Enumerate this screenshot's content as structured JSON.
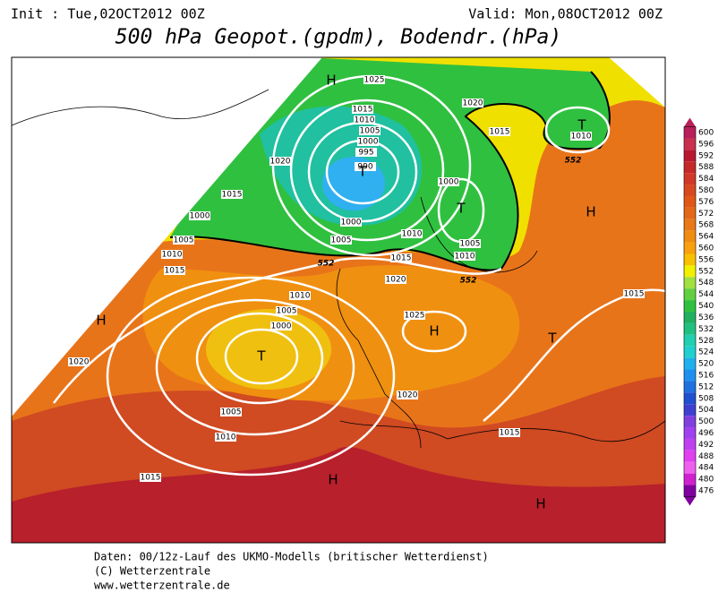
{
  "header": {
    "init": "Init : Tue,02OCT2012 00Z",
    "valid": "Valid: Mon,08OCT2012 00Z",
    "title": "500 hPa Geopot.(gpdm), Bodendr.(hPa)"
  },
  "map": {
    "pressure_centers": [
      "H",
      "T",
      "T",
      "T",
      "H",
      "H",
      "T",
      "H",
      "T",
      "H",
      "H"
    ],
    "isobar_labels": [
      "1025",
      "1020",
      "1015",
      "1010",
      "1015",
      "1010",
      "1005",
      "1000",
      "995",
      "990",
      "1020",
      "1015",
      "1000",
      "1005",
      "1010",
      "1015",
      "1000",
      "1000",
      "1005",
      "1010",
      "1005",
      "1010",
      "1015",
      "1020",
      "1025",
      "1010",
      "1005",
      "1000",
      "1015",
      "1020",
      "1020",
      "1005",
      "1010",
      "1015",
      "1015"
    ],
    "contour_labels": [
      "552",
      "552",
      "552"
    ]
  },
  "scale": {
    "labels": [
      "600",
      "596",
      "592",
      "588",
      "584",
      "580",
      "576",
      "572",
      "568",
      "564",
      "560",
      "556",
      "552",
      "548",
      "544",
      "540",
      "536",
      "532",
      "528",
      "524",
      "520",
      "516",
      "512",
      "508",
      "504",
      "500",
      "496",
      "492",
      "488",
      "484",
      "480",
      "476"
    ],
    "colors": [
      "#b8205a",
      "#c8304e",
      "#b81830",
      "#c42828",
      "#d03828",
      "#d84820",
      "#e05818",
      "#e46818",
      "#e87818",
      "#f08c10",
      "#f8a010",
      "#f8c000",
      "#f0f000",
      "#a0e040",
      "#60d040",
      "#30c040",
      "#20b060",
      "#20c080",
      "#20d0b0",
      "#20d0d0",
      "#20b0f0",
      "#2090f0",
      "#2070e0",
      "#2050d0",
      "#4040d0",
      "#8040e0",
      "#a040f0",
      "#c040f0",
      "#e040f0",
      "#f060f0",
      "#d020d0",
      "#8000a0"
    ]
  },
  "footer": {
    "lines": [
      "Daten: 00/12z-Lauf des UKMO-Modells (britischer Wetterdienst)",
      "(C) Wetterzentrale",
      "www.wetterzentrale.de"
    ]
  }
}
